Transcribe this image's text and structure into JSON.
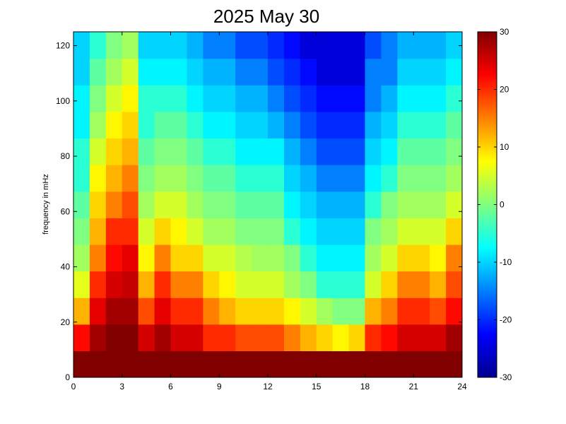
{
  "chart_data": {
    "type": "heatmap",
    "title": "2025 May 30",
    "xlabel": "",
    "ylabel": "frequency in mHz",
    "xlim": [
      0,
      24
    ],
    "ylim": [
      0,
      125
    ],
    "x_ticks": [
      0,
      3,
      6,
      9,
      12,
      15,
      18,
      21,
      24
    ],
    "y_ticks": [
      0,
      20,
      40,
      60,
      80,
      100,
      120
    ],
    "colorbar": {
      "colormap": "jet",
      "range": [
        -30,
        30
      ],
      "ticks": [
        30,
        20,
        10,
        0,
        -10,
        -20,
        -30
      ]
    },
    "colors": {
      "dark_blue": "#00008f",
      "blue": "#0000ff",
      "cyan": "#00ffff",
      "yellow": "#ffff00",
      "red": "#ff0000",
      "dark_red": "#800000"
    },
    "grid": false,
    "x_bins": 24,
    "y_bins": 13,
    "bin_value_grid_note": "rows = frequency bins from low (0-10 mHz) to high (120-125 mHz); columns = hourly bins 0-24",
    "values": [
      [
        30,
        30,
        30,
        30,
        30,
        30,
        30,
        30,
        30,
        30,
        30,
        30,
        30,
        30,
        30,
        30,
        30,
        30,
        30,
        30,
        30,
        30,
        30,
        30
      ],
      [
        22,
        28,
        30,
        30,
        25,
        28,
        25,
        25,
        20,
        20,
        18,
        18,
        18,
        15,
        12,
        10,
        8,
        10,
        20,
        22,
        25,
        25,
        25,
        28
      ],
      [
        12,
        24,
        28,
        28,
        18,
        24,
        20,
        20,
        15,
        12,
        10,
        10,
        10,
        8,
        5,
        2,
        0,
        0,
        12,
        15,
        20,
        20,
        18,
        22
      ],
      [
        6,
        20,
        25,
        26,
        12,
        20,
        15,
        15,
        10,
        8,
        5,
        5,
        5,
        2,
        0,
        -5,
        -5,
        -5,
        5,
        10,
        15,
        15,
        12,
        18
      ],
      [
        2,
        15,
        22,
        24,
        8,
        15,
        10,
        10,
        5,
        5,
        3,
        2,
        2,
        0,
        -5,
        -8,
        -8,
        -8,
        2,
        5,
        10,
        10,
        8,
        15
      ],
      [
        0,
        12,
        20,
        20,
        5,
        10,
        8,
        5,
        2,
        2,
        0,
        0,
        0,
        -5,
        -8,
        -10,
        -10,
        -10,
        0,
        2,
        5,
        5,
        5,
        10
      ],
      [
        -2,
        10,
        15,
        18,
        2,
        5,
        5,
        2,
        0,
        0,
        -2,
        -2,
        -2,
        -8,
        -10,
        -12,
        -12,
        -12,
        -5,
        0,
        2,
        2,
        2,
        5
      ],
      [
        -5,
        8,
        12,
        15,
        0,
        2,
        2,
        0,
        -2,
        -2,
        -5,
        -5,
        -5,
        -10,
        -12,
        -15,
        -15,
        -15,
        -8,
        -5,
        0,
        0,
        0,
        2
      ],
      [
        -5,
        5,
        10,
        12,
        -2,
        0,
        0,
        -2,
        -5,
        -5,
        -8,
        -8,
        -8,
        -12,
        -15,
        -18,
        -18,
        -18,
        -10,
        -8,
        -2,
        -2,
        -2,
        0
      ],
      [
        -8,
        2,
        8,
        10,
        -5,
        -2,
        -2,
        -5,
        -8,
        -8,
        -10,
        -10,
        -12,
        -15,
        -18,
        -20,
        -20,
        -20,
        -12,
        -10,
        -5,
        -5,
        -5,
        -2
      ],
      [
        -8,
        0,
        5,
        8,
        -5,
        -5,
        -5,
        -8,
        -10,
        -10,
        -12,
        -12,
        -15,
        -18,
        -20,
        -22,
        -22,
        -22,
        -15,
        -12,
        -8,
        -8,
        -8,
        -5
      ],
      [
        -10,
        -2,
        2,
        5,
        -8,
        -8,
        -8,
        -10,
        -12,
        -12,
        -15,
        -15,
        -18,
        -20,
        -22,
        -25,
        -25,
        -25,
        -15,
        -15,
        -10,
        -10,
        -10,
        -8
      ],
      [
        -10,
        -5,
        0,
        2,
        -10,
        -10,
        -10,
        -12,
        -15,
        -15,
        -18,
        -18,
        -20,
        -22,
        -25,
        -25,
        -25,
        -25,
        -18,
        -15,
        -12,
        -12,
        -12,
        -10
      ]
    ]
  }
}
